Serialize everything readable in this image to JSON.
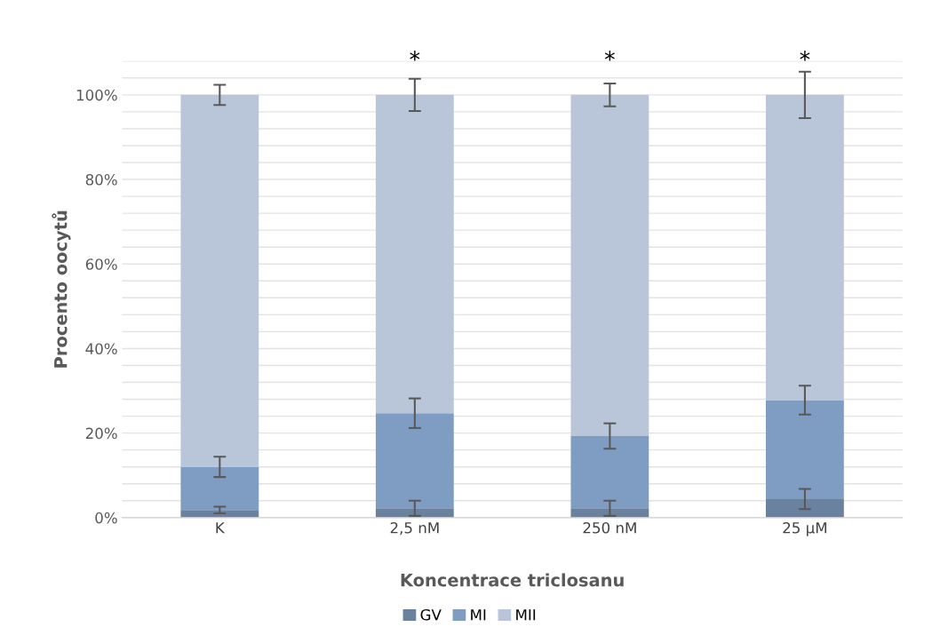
{
  "chart_data": {
    "type": "bar",
    "stacked": true,
    "xlabel": "Koncentrace triclosanu",
    "ylabel": "Procento oocytů",
    "categories": [
      "K",
      "2,5 nM",
      "250 nM",
      "25 µM"
    ],
    "series": [
      {
        "name": "GV",
        "color": "#6a819f",
        "values": [
          1.8,
          2.2,
          2.2,
          4.4
        ],
        "errors": [
          0.8,
          1.8,
          1.8,
          2.4
        ]
      },
      {
        "name": "MI",
        "color": "#7f9dc2",
        "values": [
          10.2,
          22.5,
          17.1,
          23.4
        ],
        "errors": [
          2.4,
          3.5,
          3.0,
          3.4
        ]
      },
      {
        "name": "MII",
        "color": "#b9c6da",
        "values": [
          88.0,
          75.3,
          80.7,
          72.2
        ],
        "errors": [
          2.4,
          3.8,
          2.7,
          5.5
        ]
      }
    ],
    "ylim": [
      0,
      108
    ],
    "yticks": [
      {
        "value": 0,
        "label": "0%"
      },
      {
        "value": 4,
        "label": null
      },
      {
        "value": 8,
        "label": null
      },
      {
        "value": 12,
        "label": null
      },
      {
        "value": 16,
        "label": null
      },
      {
        "value": 20,
        "label": "20%"
      },
      {
        "value": 24,
        "label": null
      },
      {
        "value": 28,
        "label": null
      },
      {
        "value": 32,
        "label": null
      },
      {
        "value": 36,
        "label": null
      },
      {
        "value": 40,
        "label": "40%"
      },
      {
        "value": 44,
        "label": null
      },
      {
        "value": 48,
        "label": null
      },
      {
        "value": 52,
        "label": null
      },
      {
        "value": 56,
        "label": null
      },
      {
        "value": 60,
        "label": "60%"
      },
      {
        "value": 64,
        "label": null
      },
      {
        "value": 68,
        "label": null
      },
      {
        "value": 72,
        "label": null
      },
      {
        "value": 76,
        "label": null
      },
      {
        "value": 80,
        "label": "80%"
      },
      {
        "value": 84,
        "label": null
      },
      {
        "value": 88,
        "label": null
      },
      {
        "value": 92,
        "label": null
      },
      {
        "value": 96,
        "label": null
      },
      {
        "value": 100,
        "label": "100%"
      },
      {
        "value": 104,
        "label": null
      },
      {
        "value": 108,
        "label": null
      }
    ],
    "grid": "y",
    "legend": "bottom",
    "annotations": [
      "*",
      "*",
      "*"
    ]
  }
}
